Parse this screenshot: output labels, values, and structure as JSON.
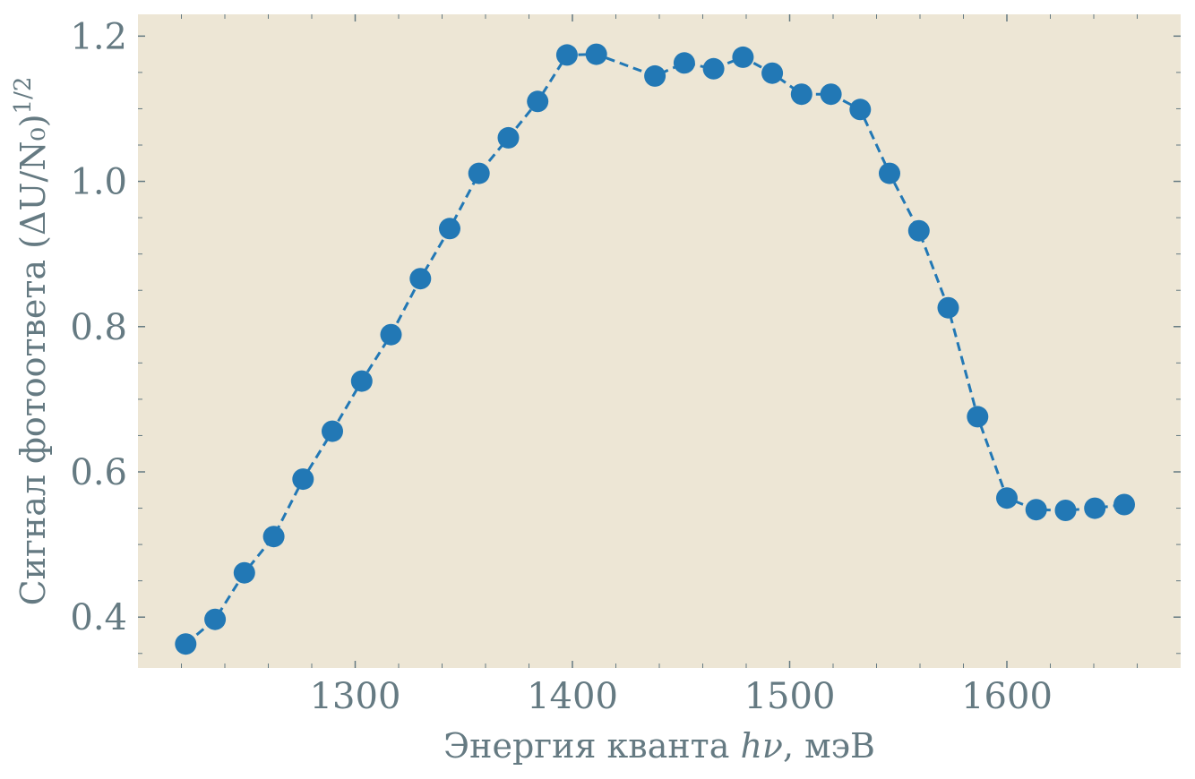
{
  "chart_data": {
    "type": "line",
    "xlabel": "Энергия кванта ",
    "xlabel_math": "hν",
    "xlabel_suffix": ", мэВ",
    "ylabel": "Сигнал фотоответа (ΔU/N₀)",
    "ylabel_sup": "1/2",
    "xlim": [
      1200,
      1680
    ],
    "ylim": [
      0.33,
      1.23
    ],
    "xticks": [
      1300,
      1400,
      1500,
      1600
    ],
    "xtick_labels": [
      "1300",
      "1400",
      "1500",
      "1600"
    ],
    "yticks": [
      0.4,
      0.6,
      0.8,
      1.0,
      1.2
    ],
    "ytick_labels": [
      "0.4",
      "0.6",
      "0.8",
      "1.0",
      "1.2"
    ],
    "grid": false,
    "background_color": "#ede6d5",
    "series": [
      {
        "color": "#2278b5",
        "linestyle": "dashed",
        "marker": "circle",
        "x": [
          1222,
          1235.5,
          1249,
          1262.5,
          1276,
          1289.5,
          1303,
          1316.5,
          1330,
          1343.5,
          1357,
          1370.5,
          1384,
          1397.5,
          1411,
          1438,
          1451.5,
          1465,
          1478.5,
          1492,
          1505.5,
          1519,
          1532.5,
          1546,
          1559.5,
          1573,
          1586.5,
          1600,
          1613.5,
          1627,
          1640.5,
          1654
        ],
        "y": [
          0.363,
          0.397,
          0.461,
          0.511,
          0.59,
          0.656,
          0.725,
          0.789,
          0.866,
          0.935,
          1.011,
          1.06,
          1.11,
          1.174,
          1.175,
          1.145,
          1.163,
          1.155,
          1.171,
          1.149,
          1.12,
          1.12,
          1.099,
          1.011,
          0.932,
          0.826,
          0.676,
          0.564,
          0.548,
          0.547,
          0.55,
          0.555
        ]
      }
    ]
  }
}
